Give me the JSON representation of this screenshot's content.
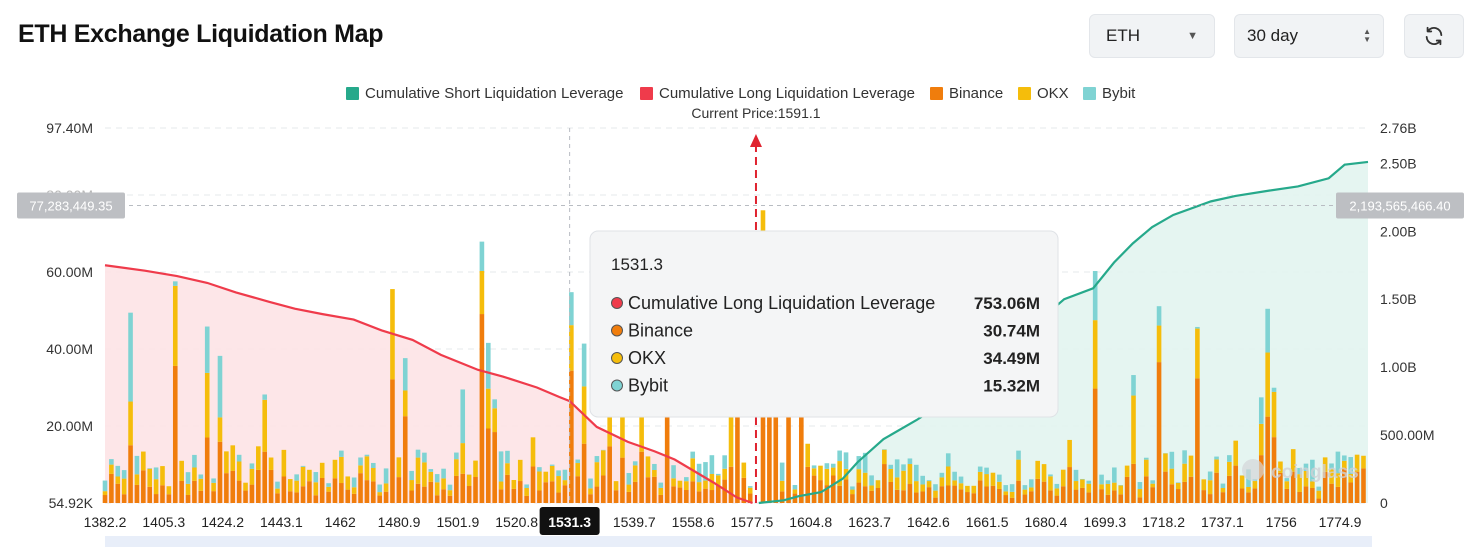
{
  "header": {
    "title": "ETH Exchange Liquidation Map",
    "coin_select": "ETH",
    "period_select": "30 day"
  },
  "icons": {
    "coin_caret": "caret-down-icon",
    "period_stepper": "up-down-icon",
    "refresh": "refresh-icon",
    "watermark": "coinglass-logo"
  },
  "colors": {
    "short": "#26a98b",
    "long": "#ef3b4b",
    "binance": "#f07d0c",
    "okx": "#f5bd0b",
    "bybit": "#7fd3d3",
    "short_fill": "#e2f4ef",
    "long_fill": "#fde3e5"
  },
  "chart_data": {
    "type": "bar",
    "legend": [
      {
        "key": "short",
        "label": "Cumulative Short Liquidation Leverage"
      },
      {
        "key": "long",
        "label": "Cumulative Long Liquidation Leverage"
      },
      {
        "key": "binance",
        "label": "Binance"
      },
      {
        "key": "okx",
        "label": "OKX"
      },
      {
        "key": "bybit",
        "label": "Bybit"
      }
    ],
    "legend_position": "top-center",
    "current_price_label": "Current Price:1591.1",
    "current_price": 1591.1,
    "x_range": [
      1382.2,
      1787.5
    ],
    "x_ticks": [
      "1382.2",
      "1405.3",
      "1424.2",
      "1443.1",
      "1462",
      "1480.9",
      "1501.9",
      "1520.8",
      "1531.3",
      "1539.7",
      "1558.6",
      "1577.5",
      "1604.8",
      "1623.7",
      "1642.6",
      "1661.5",
      "1680.4",
      "1699.3",
      "1718.2",
      "1737.1",
      "1756",
      "1774.9"
    ],
    "y_left_ticks": [
      "97.40M",
      "",
      "60.00M",
      "40.00M",
      "20.00M",
      "54.92K"
    ],
    "y_left_range": [
      0,
      97.4
    ],
    "y_right_ticks": [
      "2.76B",
      "2.50B",
      "2.00B",
      "1.50B",
      "1.00B",
      "500.00M",
      "0"
    ],
    "y_right_range": [
      0,
      2.76
    ],
    "crosshair": {
      "x": 1531.3,
      "x_label": "1531.3",
      "y_left_label": "77,283,449.35",
      "y_right_label": "2,193,565,466.40"
    },
    "tooltip": {
      "title": "1531.3",
      "rows": [
        {
          "key": "long",
          "label": "Cumulative Long Liquidation Leverage",
          "value": "753.06M"
        },
        {
          "key": "binance",
          "label": "Binance",
          "value": "30.74M"
        },
        {
          "key": "okx",
          "label": "OKX",
          "value": "34.49M"
        },
        {
          "key": "bybit",
          "label": "Bybit",
          "value": "15.32M"
        }
      ]
    },
    "long_cumulative": {
      "x": [
        1382.2,
        1395,
        1405.3,
        1415,
        1424.2,
        1435,
        1443.1,
        1452,
        1462,
        1471,
        1480.9,
        1490,
        1501.9,
        1510,
        1520.8,
        1528,
        1531.3,
        1540,
        1550,
        1558.6,
        1565,
        1577.5,
        1585,
        1590
      ],
      "y_billion": [
        1.75,
        1.71,
        1.67,
        1.62,
        1.55,
        1.48,
        1.43,
        1.39,
        1.35,
        1.27,
        1.2,
        1.09,
        0.98,
        0.93,
        0.85,
        0.78,
        0.75,
        0.56,
        0.45,
        0.38,
        0.32,
        0.15,
        0.04,
        0.0
      ]
    },
    "short_cumulative": {
      "x": [
        1592,
        1600,
        1604.8,
        1612,
        1619,
        1623.7,
        1632,
        1642.6,
        1650,
        1661.5,
        1668,
        1674,
        1680.4,
        1690,
        1699.3,
        1706,
        1712,
        1718.2,
        1725,
        1737.1,
        1745,
        1756,
        1765,
        1774.9,
        1780,
        1787.5
      ],
      "y_billion": [
        0.0,
        0.02,
        0.05,
        0.08,
        0.18,
        0.3,
        0.47,
        0.61,
        0.72,
        0.85,
        1.02,
        1.18,
        1.31,
        1.5,
        1.58,
        1.77,
        1.91,
        2.03,
        2.12,
        2.22,
        2.26,
        2.3,
        2.33,
        2.39,
        2.49,
        2.51
      ]
    }
  }
}
